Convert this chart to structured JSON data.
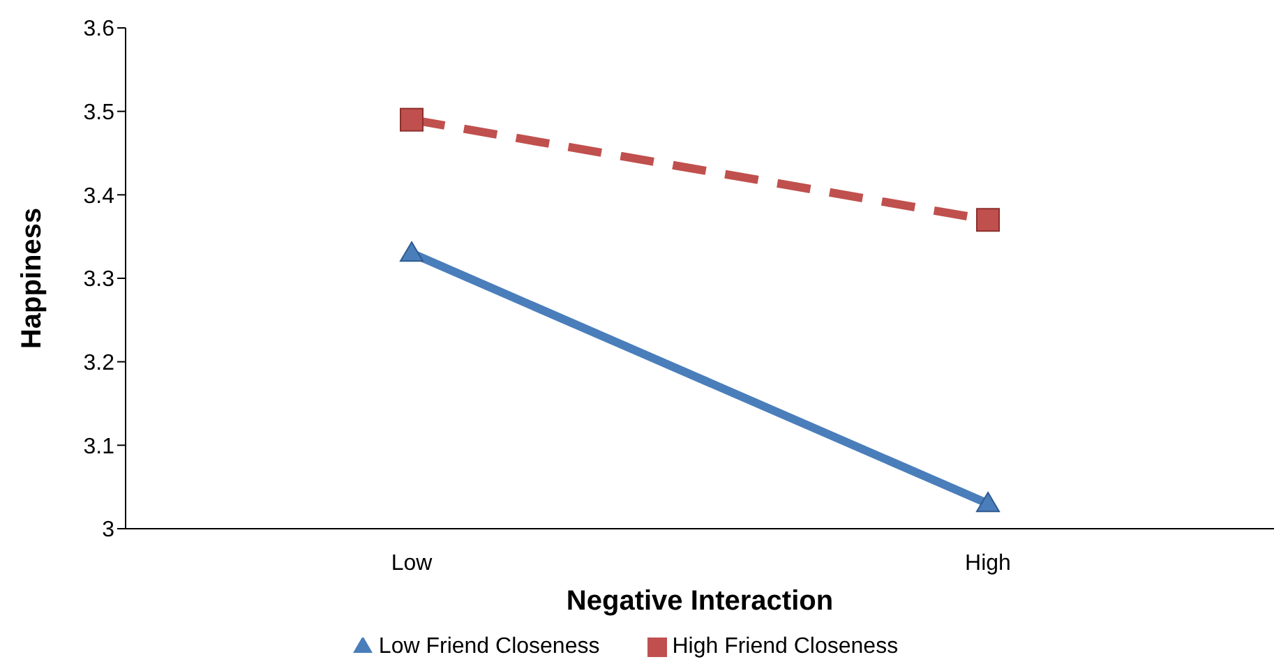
{
  "chart_data": {
    "type": "line",
    "xlabel": "Negative Interaction",
    "ylabel": "Happiness",
    "categories": [
      "Low",
      "High"
    ],
    "series": [
      {
        "name": "Low Friend Closeness",
        "color": "#4a7ebb",
        "values": [
          3.33,
          3.03
        ],
        "marker": "triangle",
        "line_style": "solid"
      },
      {
        "name": "High Friend Closeness",
        "color": "#c0504d",
        "values": [
          3.49,
          3.37
        ],
        "marker": "square",
        "line_style": "dashed"
      }
    ],
    "ylim": [
      3,
      3.6
    ],
    "yticks": [
      3,
      3.1,
      3.2,
      3.3,
      3.4,
      3.5,
      3.6
    ],
    "grid": false,
    "legend": "bottom"
  }
}
